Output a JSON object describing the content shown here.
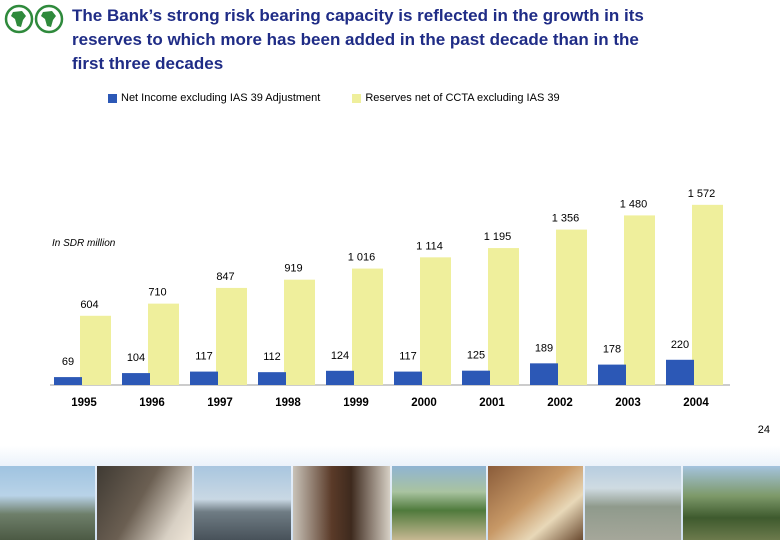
{
  "title_lines": [
    "The Bank’s strong risk bearing capacity is reflected in the growth in its",
    "reserves to which more has been added in the past decade than in the",
    "first three decades"
  ],
  "unit_label": "In SDR million",
  "page_number": "24",
  "colors": {
    "title": "#1f2c86",
    "net_income": "#2c58b6",
    "reserves": "#efef9c"
  },
  "chart_data": {
    "type": "bar",
    "categories": [
      "1995",
      "1996",
      "1997",
      "1998",
      "1999",
      "2000",
      "2001",
      "2002",
      "2003",
      "2004"
    ],
    "series": [
      {
        "name": "Net Income excluding IAS 39 Adjustment",
        "values": [
          69,
          104,
          117,
          112,
          124,
          117,
          125,
          189,
          178,
          220
        ],
        "labels": [
          "69",
          "104",
          "117",
          "112",
          "124",
          "117",
          "125",
          "189",
          "178",
          "220"
        ]
      },
      {
        "name": "Reserves net of CCTA excluding IAS 39",
        "values": [
          604,
          710,
          847,
          919,
          1016,
          1114,
          1195,
          1356,
          1480,
          1572
        ],
        "labels": [
          "604",
          "710",
          "847",
          "919",
          "1 016",
          "1 114",
          "1 195",
          "1 356",
          "1 480",
          "1 572"
        ]
      }
    ],
    "legend_position": "top",
    "grid": false
  },
  "photos": [
    "building-photo",
    "classroom-photo",
    "ship-photo",
    "student-photo",
    "road-photo",
    "market-photo",
    "drying-field-photo",
    "group-photo"
  ]
}
